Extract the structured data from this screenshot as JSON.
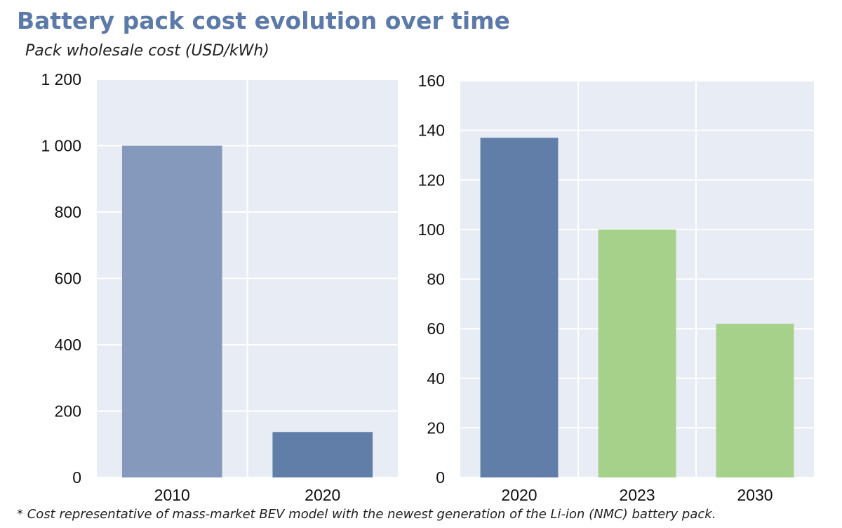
{
  "title": "Battery pack cost evolution over time",
  "subtitle": "Pack wholesale cost (USD/kWh)",
  "footnote": "* Cost representative of mass-market BEV model with the newest generation of the Li-ion (NMC) battery pack.",
  "colors": {
    "plot_bg": "#e8ecf4",
    "grid": "#ffffff",
    "bar_light_blue": "#8599bd",
    "bar_blue": "#617ea9",
    "bar_green": "#a5d18a"
  },
  "chart_data": [
    {
      "type": "bar",
      "categories": [
        "2010",
        "2020"
      ],
      "values": [
        1000,
        137
      ],
      "bar_colors": [
        "#8599bd",
        "#617ea9"
      ],
      "ylim": [
        0,
        1200
      ],
      "yticks": [
        0,
        200,
        400,
        600,
        800,
        1000,
        1200
      ],
      "ytick_labels": [
        "0",
        "200",
        "400",
        "600",
        "800",
        "1 000",
        "1 200"
      ],
      "xlabel": "",
      "ylabel": "Pack wholesale cost (USD/kWh)"
    },
    {
      "type": "bar",
      "categories": [
        "2020",
        "2023",
        "2030"
      ],
      "values": [
        137,
        100,
        62
      ],
      "bar_colors": [
        "#617ea9",
        "#a5d18a",
        "#a5d18a"
      ],
      "ylim": [
        0,
        160
      ],
      "yticks": [
        0,
        20,
        40,
        60,
        80,
        100,
        120,
        140,
        160
      ],
      "ytick_labels": [
        "0",
        "20",
        "40",
        "60",
        "80",
        "100",
        "120",
        "140",
        "160"
      ],
      "xlabel": "",
      "ylabel": ""
    }
  ]
}
